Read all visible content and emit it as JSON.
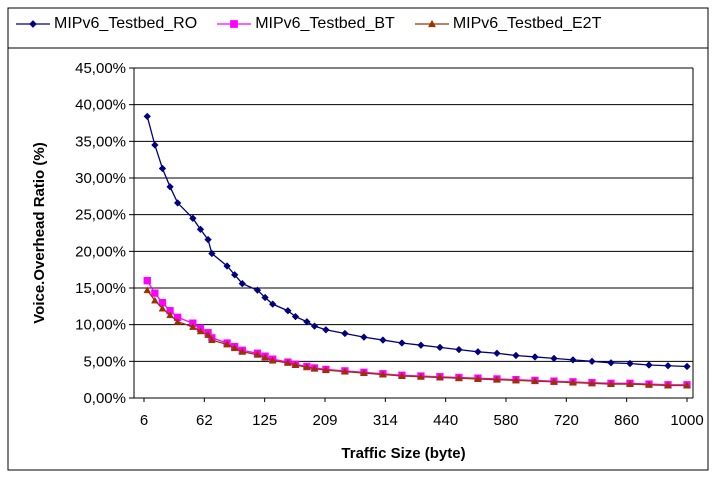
{
  "chart_data": {
    "type": "line",
    "title": "",
    "xlabel": "Traffic Size (byte)",
    "ylabel": "Voice.Overhead Ratio (%)",
    "ylim": [
      0,
      0.45
    ],
    "yticks": [
      "0,00%",
      "5,00%",
      "10,00%",
      "15,00%",
      "20,00%",
      "25,00%",
      "30,00%",
      "35,00%",
      "40,00%",
      "45,00%"
    ],
    "xticks": [
      "6",
      "62",
      "125",
      "209",
      "314",
      "440",
      "580",
      "720",
      "860",
      "1000"
    ],
    "grid": "horizontal",
    "legend_position": "top",
    "x": [
      6,
      20,
      34,
      48,
      62,
      90,
      104,
      118,
      125,
      153,
      167,
      181,
      209,
      223,
      237,
      265,
      279,
      300,
      314,
      335,
      370,
      405,
      440,
      475,
      510,
      545,
      580,
      615,
      650,
      685,
      720,
      755,
      790,
      825,
      860,
      895,
      930,
      965,
      1000
    ],
    "series": [
      {
        "name": "MIPv6_Testbed_RO",
        "color": "#000080",
        "marker": "diamond",
        "values": [
          0.384,
          0.345,
          0.313,
          0.288,
          0.266,
          0.245,
          0.23,
          0.216,
          0.197,
          0.18,
          0.168,
          0.156,
          0.147,
          0.137,
          0.128,
          0.119,
          0.111,
          0.104,
          0.098,
          0.093,
          0.088,
          0.083,
          0.079,
          0.075,
          0.072,
          0.069,
          0.066,
          0.063,
          0.061,
          0.058,
          0.056,
          0.054,
          0.052,
          0.05,
          0.048,
          0.047,
          0.045,
          0.044,
          0.043
        ]
      },
      {
        "name": "MIPv6_Testbed_BT",
        "color": "#ff00ff",
        "marker": "square",
        "values": [
          0.16,
          0.143,
          0.13,
          0.119,
          0.11,
          0.102,
          0.095,
          0.089,
          0.082,
          0.075,
          0.07,
          0.065,
          0.061,
          0.057,
          0.053,
          0.049,
          0.046,
          0.043,
          0.041,
          0.039,
          0.037,
          0.035,
          0.033,
          0.031,
          0.03,
          0.029,
          0.028,
          0.027,
          0.026,
          0.025,
          0.024,
          0.023,
          0.022,
          0.021,
          0.02,
          0.02,
          0.019,
          0.018,
          0.018
        ]
      },
      {
        "name": "MIPv6_Testbed_E2T",
        "color": "#993300",
        "marker": "triangle",
        "values": [
          0.147,
          0.133,
          0.122,
          0.113,
          0.104,
          0.097,
          0.091,
          0.086,
          0.079,
          0.073,
          0.068,
          0.063,
          0.059,
          0.055,
          0.051,
          0.048,
          0.045,
          0.042,
          0.04,
          0.038,
          0.036,
          0.034,
          0.032,
          0.03,
          0.029,
          0.028,
          0.027,
          0.026,
          0.025,
          0.024,
          0.023,
          0.022,
          0.021,
          0.02,
          0.019,
          0.019,
          0.018,
          0.017,
          0.017
        ]
      }
    ]
  }
}
